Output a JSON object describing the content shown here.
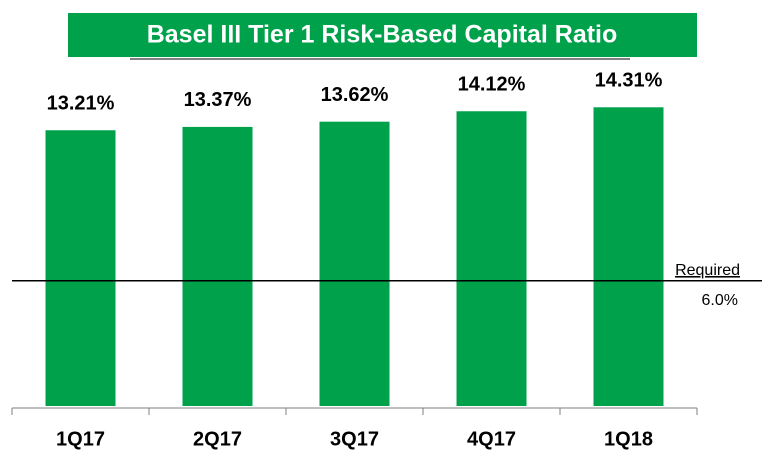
{
  "chart_data": {
    "type": "bar",
    "title": "Basel III Tier 1 Risk-Based Capital Ratio",
    "categories": [
      "1Q17",
      "2Q17",
      "3Q17",
      "4Q17",
      "1Q18"
    ],
    "values": [
      13.21,
      13.37,
      13.62,
      14.12,
      14.31
    ],
    "value_labels": [
      "13.21%",
      "13.37%",
      "13.62%",
      "14.12%",
      "14.31%"
    ],
    "color": "#00a14b",
    "ylim": [
      0,
      16
    ],
    "reference_line": {
      "label": "Required",
      "value": 6.0,
      "value_label": "6.0%"
    }
  }
}
